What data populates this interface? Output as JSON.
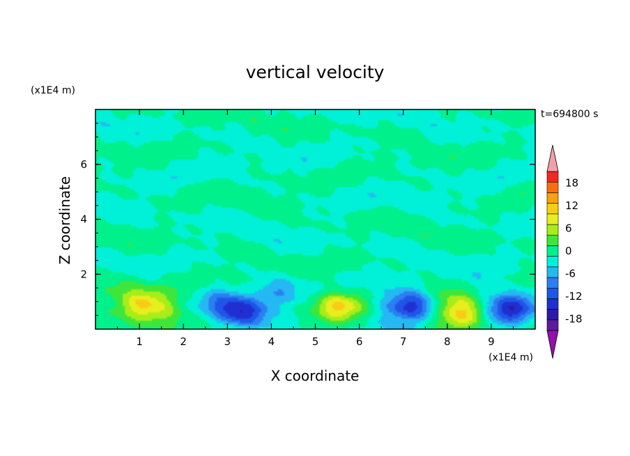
{
  "chart_data": {
    "type": "heatmap",
    "title": "vertical velocity",
    "xlabel": "X coordinate",
    "ylabel": "Z coordinate",
    "x_unit": "(x1E4 m)",
    "y_unit": "(x1E4 m)",
    "time_label": "t=694800 s",
    "xlim": [
      0,
      10
    ],
    "ylim": [
      0,
      8
    ],
    "x_ticks": [
      "1",
      "2",
      "3",
      "4",
      "5",
      "6",
      "7",
      "8",
      "9"
    ],
    "y_ticks": [
      "2",
      "4",
      "6"
    ],
    "colorbar": {
      "ticks": [
        "18",
        "12",
        "6",
        "0",
        "-6",
        "-12",
        "-18"
      ],
      "levels": [
        -21,
        -18,
        -15,
        -12,
        -9,
        -6,
        -3,
        0,
        3,
        6,
        9,
        12,
        15,
        18,
        21
      ],
      "colors": [
        "#5a1d9e",
        "#2d1aa6",
        "#1f2fd2",
        "#1f56e8",
        "#2b7ff0",
        "#26b8f2",
        "#00f0d8",
        "#00f08c",
        "#3ee63c",
        "#a8ec18",
        "#e8ee1e",
        "#f8cc16",
        "#f8a010",
        "#f86e10",
        "#ee2a22"
      ],
      "under_color": "#9211a8",
      "over_color": "#f2a0a6"
    },
    "features": [
      {
        "x": 1.05,
        "z": 0.9,
        "w": 11.5
      },
      {
        "x": 1.7,
        "z": 0.55,
        "w": 5.0
      },
      {
        "x": 3.3,
        "z": 0.6,
        "w": -12.0
      },
      {
        "x": 2.9,
        "z": 1.1,
        "w": -5.0
      },
      {
        "x": 3.55,
        "z": 1.35,
        "w": 3.5
      },
      {
        "x": 3.8,
        "z": 1.2,
        "w": -4.0
      },
      {
        "x": 4.2,
        "z": 1.45,
        "w": -4.0
      },
      {
        "x": 5.5,
        "z": 0.85,
        "w": 12.0
      },
      {
        "x": 6.6,
        "z": 0.9,
        "w": -3.0
      },
      {
        "x": 7.2,
        "z": 0.8,
        "w": -14.0
      },
      {
        "x": 8.35,
        "z": 0.55,
        "w": 12.0
      },
      {
        "x": 7.95,
        "z": 1.1,
        "w": 4.0
      },
      {
        "x": 9.4,
        "z": 0.75,
        "w": -13.0
      },
      {
        "x": 9.0,
        "z": 1.5,
        "w": -2.5
      },
      {
        "x": 0.4,
        "z": 1.6,
        "w": 3.0
      }
    ]
  }
}
